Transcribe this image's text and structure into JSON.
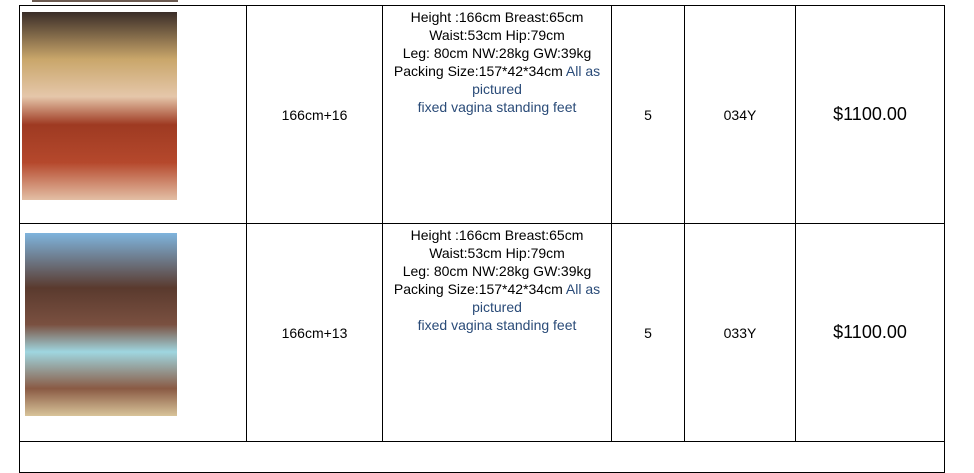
{
  "products": [
    {
      "image_alt": "doll photo blonde red top",
      "size": "166cm+16",
      "specs": [
        "Height :166cm Breast:65cm",
        "Waist:53cm Hip:79cm",
        "Leg: 80cm NW:28kg GW:39kg",
        "Packing Size:157*42*34cm"
      ],
      "note1": "All as pictured",
      "note2": "fixed vagina standing feet",
      "qty": "5",
      "code": "034Y",
      "price": "$1100.00"
    },
    {
      "image_alt": "doll photo brunette blue top",
      "size": "166cm+13",
      "specs": [
        "Height :166cm Breast:65cm",
        "Waist:53cm Hip:79cm",
        "Leg: 80cm NW:28kg GW:39kg",
        "Packing Size:157*42*34cm"
      ],
      "note1": "All as pictured",
      "note2": "fixed vagina standing feet",
      "qty": "5",
      "code": "033Y",
      "price": "$1100.00"
    }
  ]
}
